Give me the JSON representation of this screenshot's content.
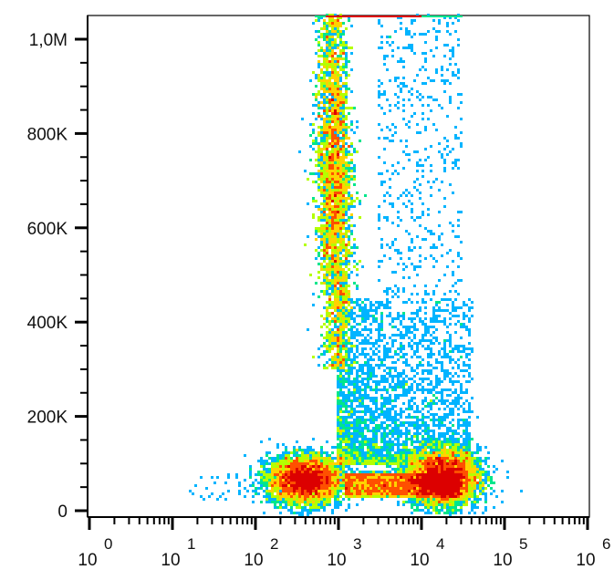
{
  "chart_data": {
    "type": "scatter",
    "title": "",
    "xlabel": "",
    "ylabel": "",
    "x_scale": "log",
    "xlim": [
      1,
      1000000
    ],
    "ylim": [
      0,
      1050000
    ],
    "grid": false,
    "legend": "none",
    "x_ticks": [
      {
        "base": "10",
        "exp": "0",
        "value": 1
      },
      {
        "base": "10",
        "exp": "1",
        "value": 10
      },
      {
        "base": "10",
        "exp": "2",
        "value": 100
      },
      {
        "base": "10",
        "exp": "3",
        "value": 1000
      },
      {
        "base": "10",
        "exp": "4",
        "value": 10000
      },
      {
        "base": "10",
        "exp": "5",
        "value": 100000
      },
      {
        "base": "10",
        "exp": "6",
        "value": 1000000
      }
    ],
    "y_ticks": [
      {
        "label": "0",
        "value": 0
      },
      {
        "label": "200K",
        "value": 200000
      },
      {
        "label": "400K",
        "value": 400000
      },
      {
        "label": "600K",
        "value": 600000
      },
      {
        "label": "800K",
        "value": 800000
      },
      {
        "label": "1,0M",
        "value": 1000000
      }
    ],
    "density_colormap": [
      "#0000ff",
      "#00b4ff",
      "#00e68c",
      "#b4ff00",
      "#ffd200",
      "#ff5000",
      "#dc0000"
    ],
    "populations": [
      {
        "x_center": 900,
        "x_spread_decades": 0.09,
        "y_min": 300000,
        "y_max": 1050000,
        "y_peak": 700000,
        "density": "high"
      },
      {
        "x_center": 400,
        "x_spread_decades": 0.22,
        "y_center": 65000,
        "y_spread": 25000,
        "density": "high"
      },
      {
        "x_center": 18000,
        "x_spread_decades": 0.22,
        "y_center": 70000,
        "y_spread": 30000,
        "density": "high"
      },
      {
        "x_range": [
          1200,
          30000
        ],
        "y_range": [
          30000,
          80000
        ],
        "density": "medium"
      },
      {
        "x_range": [
          1000,
          40000
        ],
        "y_range": [
          100000,
          450000
        ],
        "density": "low"
      },
      {
        "x_range": [
          3000,
          30000
        ],
        "y_range": [
          450000,
          1050000
        ],
        "density": "sparse"
      }
    ]
  }
}
